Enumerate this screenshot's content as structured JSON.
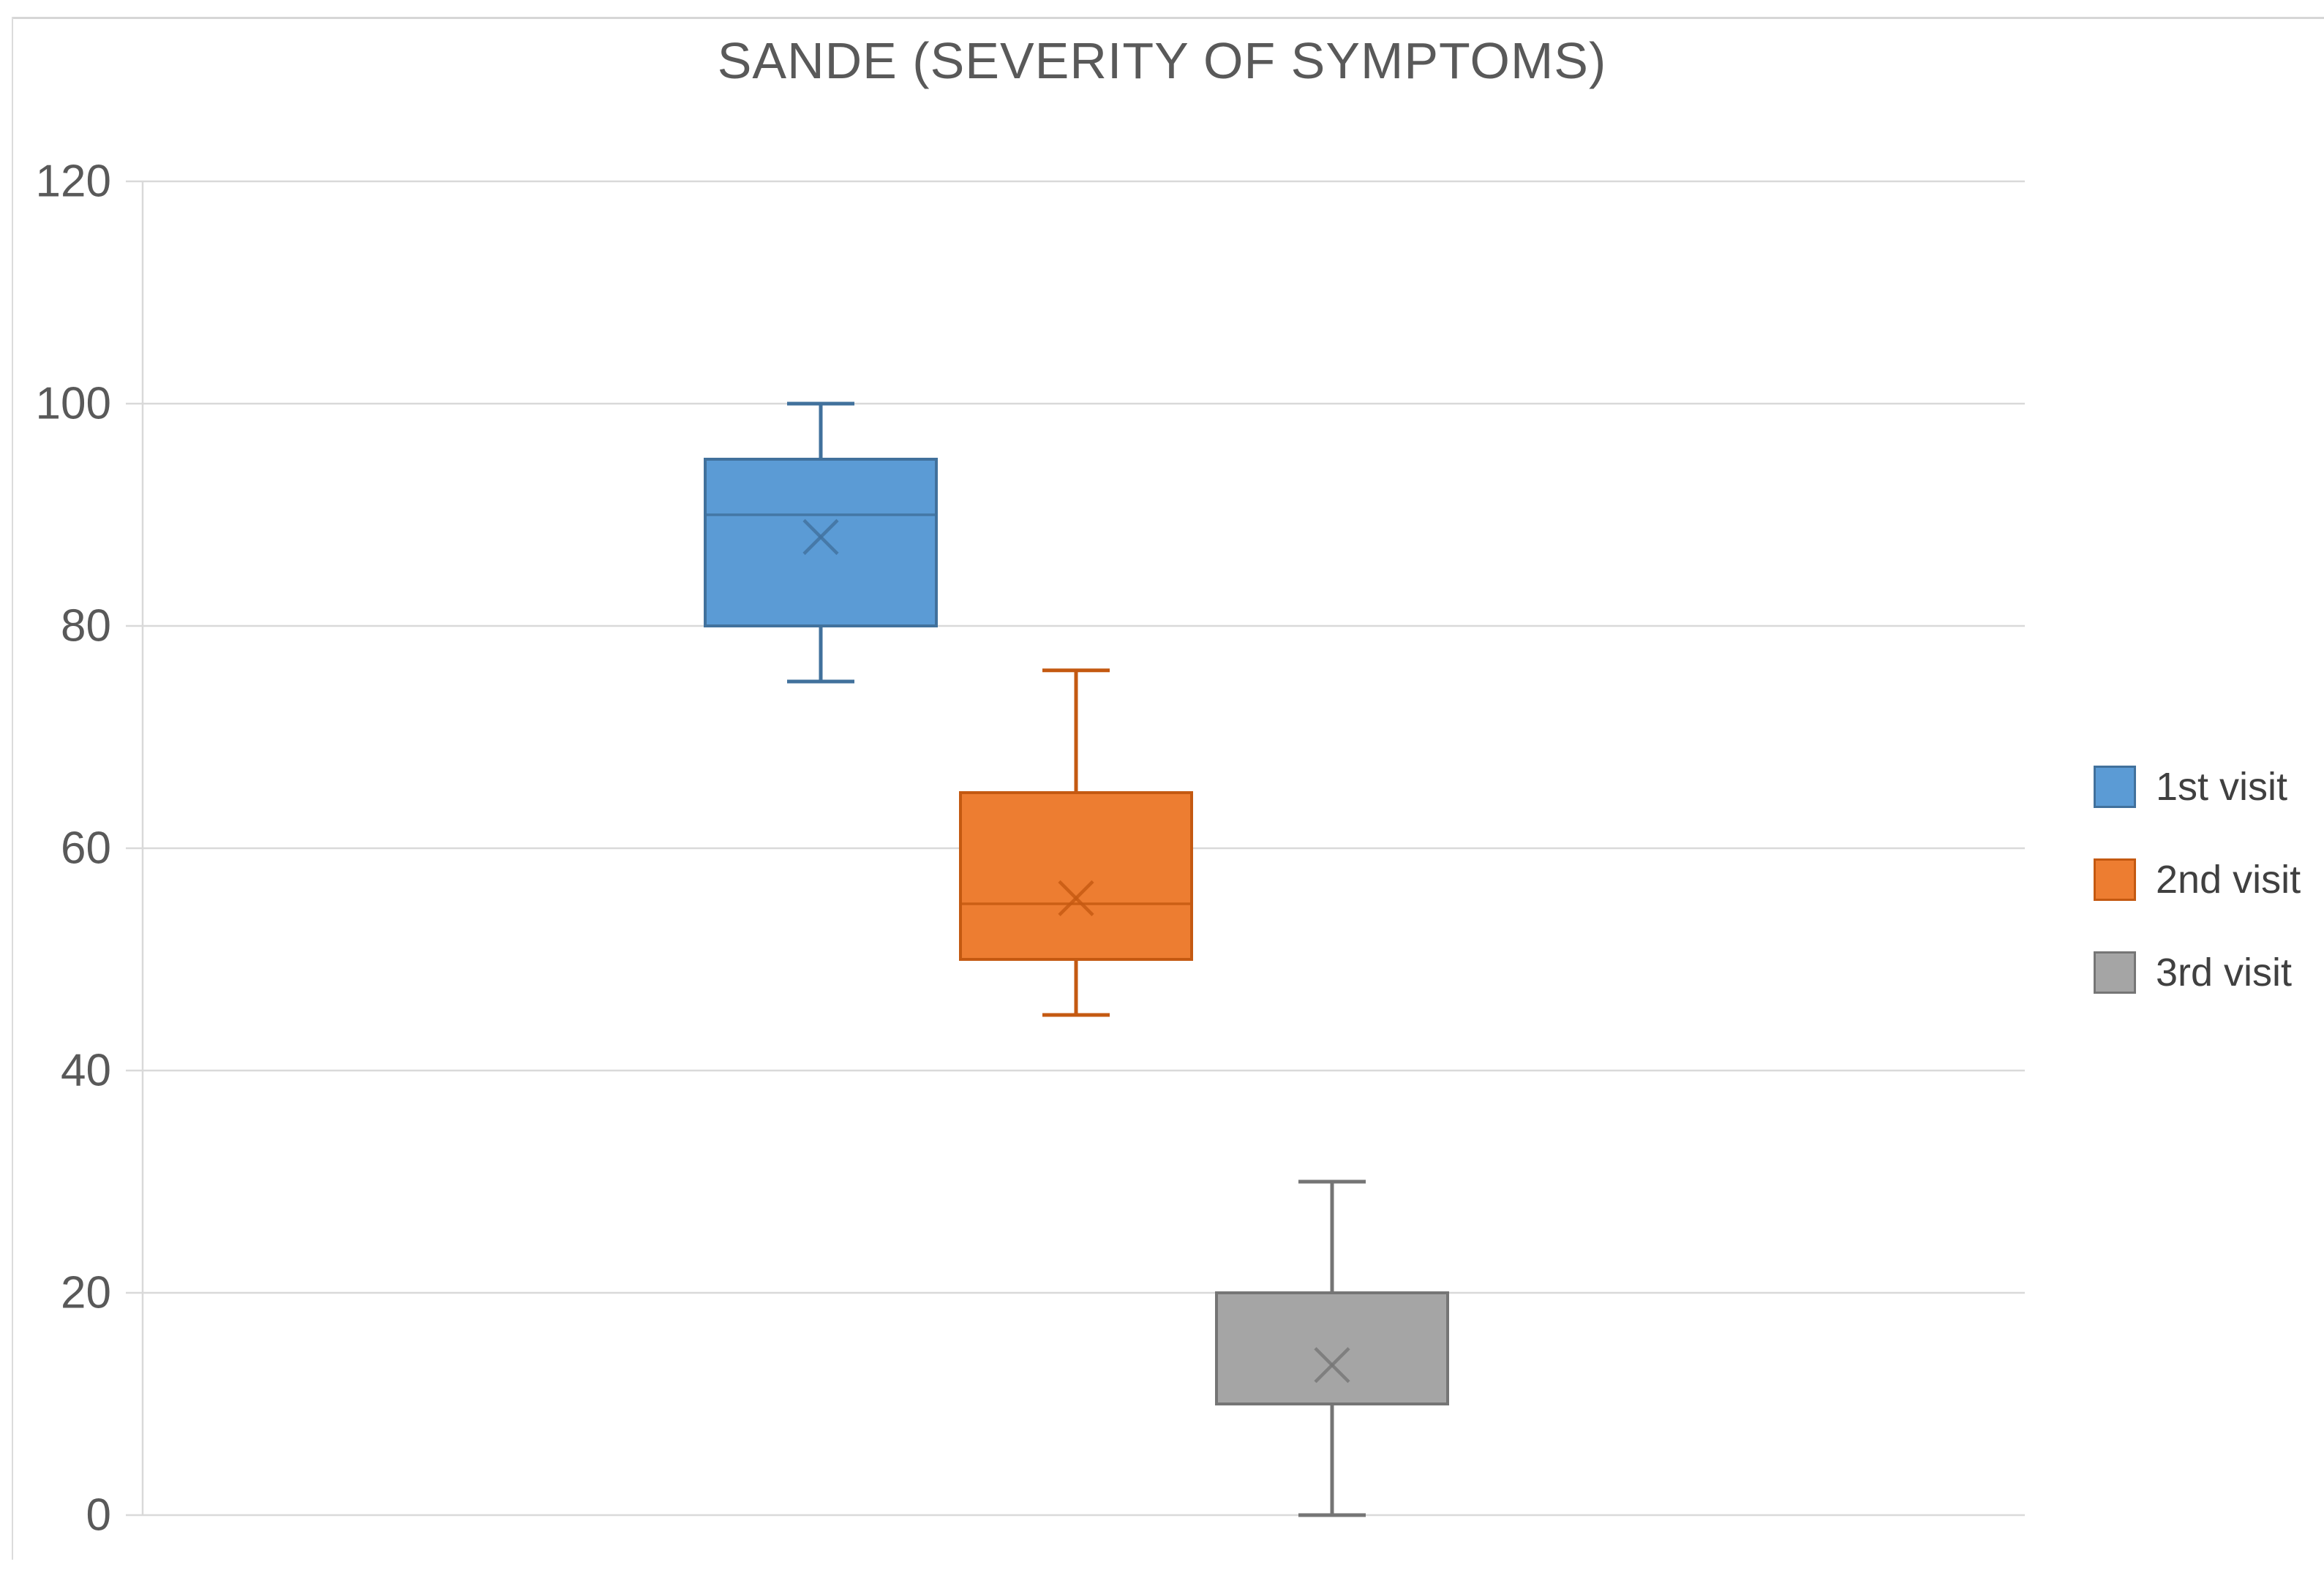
{
  "chart_data": {
    "type": "boxplot",
    "title": "SANDE (SEVERITY OF SYMPTOMS)",
    "xlabel": "",
    "ylabel": "",
    "ylim": [
      0,
      120
    ],
    "yticks": [
      0,
      20,
      40,
      60,
      80,
      100,
      120
    ],
    "grid": true,
    "legend_position": "right",
    "series": [
      {
        "name": "1st visit",
        "min": 75,
        "q1": 80,
        "median": 90,
        "q3": 95,
        "max": 100,
        "mean": 88,
        "fill": "#5B9BD5",
        "border": "#41719C"
      },
      {
        "name": "2nd visit",
        "min": 45,
        "q1": 50,
        "median": 55,
        "q3": 65,
        "max": 76,
        "mean": 55.5,
        "fill": "#ED7D31",
        "border": "#C45911"
      },
      {
        "name": "3rd visit",
        "min": 0,
        "q1": 10,
        "median": 10,
        "q3": 20,
        "max": 30,
        "mean": 13.5,
        "fill": "#A5A5A5",
        "border": "#757575"
      }
    ]
  },
  "colors": {
    "background": "#FFFFFF",
    "gridline": "#D9D9D9",
    "axis_line": "#D9D9D9",
    "axis_label": "#595959",
    "title": "#595959",
    "legend_text": "#404040",
    "chart_border": "#D6D6D6"
  }
}
